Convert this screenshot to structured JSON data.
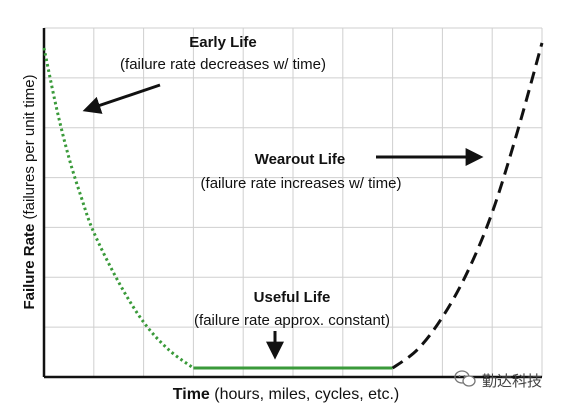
{
  "chart_data": {
    "type": "line",
    "title": "",
    "xlabel_bold": "Time",
    "xlabel_rest": "(hours, miles, cycles, etc.)",
    "ylabel_bold": "Failure Rate",
    "ylabel_rest": "(failures per unit time)",
    "grid": true,
    "xlim": [
      0,
      10
    ],
    "ylim": [
      0,
      7
    ],
    "series": [
      {
        "name": "Early Life",
        "style": "dotted",
        "color": "#3a9a3a",
        "x": [
          0,
          0.25,
          0.5,
          0.75,
          1,
          1.5,
          2,
          2.5,
          3
        ],
        "y": [
          6.6,
          5.4,
          4.4,
          3.6,
          2.9,
          1.9,
          1.1,
          0.55,
          0.18
        ]
      },
      {
        "name": "Useful Life",
        "style": "solid",
        "color": "#3a9a3a",
        "x": [
          3,
          7
        ],
        "y": [
          0.18,
          0.18
        ]
      },
      {
        "name": "Wearout Life",
        "style": "dashed",
        "color": "#111111",
        "x": [
          7,
          7.5,
          8,
          8.5,
          9,
          9.5,
          10
        ],
        "y": [
          0.18,
          0.55,
          1.2,
          2.1,
          3.3,
          4.9,
          6.7
        ]
      }
    ],
    "annotations": [
      {
        "bold": "Early Life",
        "text": "(failure rate decreases w/ time)"
      },
      {
        "bold": "Wearout Life",
        "text": "(failure rate increases w/ time)"
      },
      {
        "bold": "Useful Life",
        "text": "(failure rate approx. constant)"
      }
    ]
  },
  "watermark": {
    "icon": "wechat-icon",
    "text": "勤达科技"
  }
}
